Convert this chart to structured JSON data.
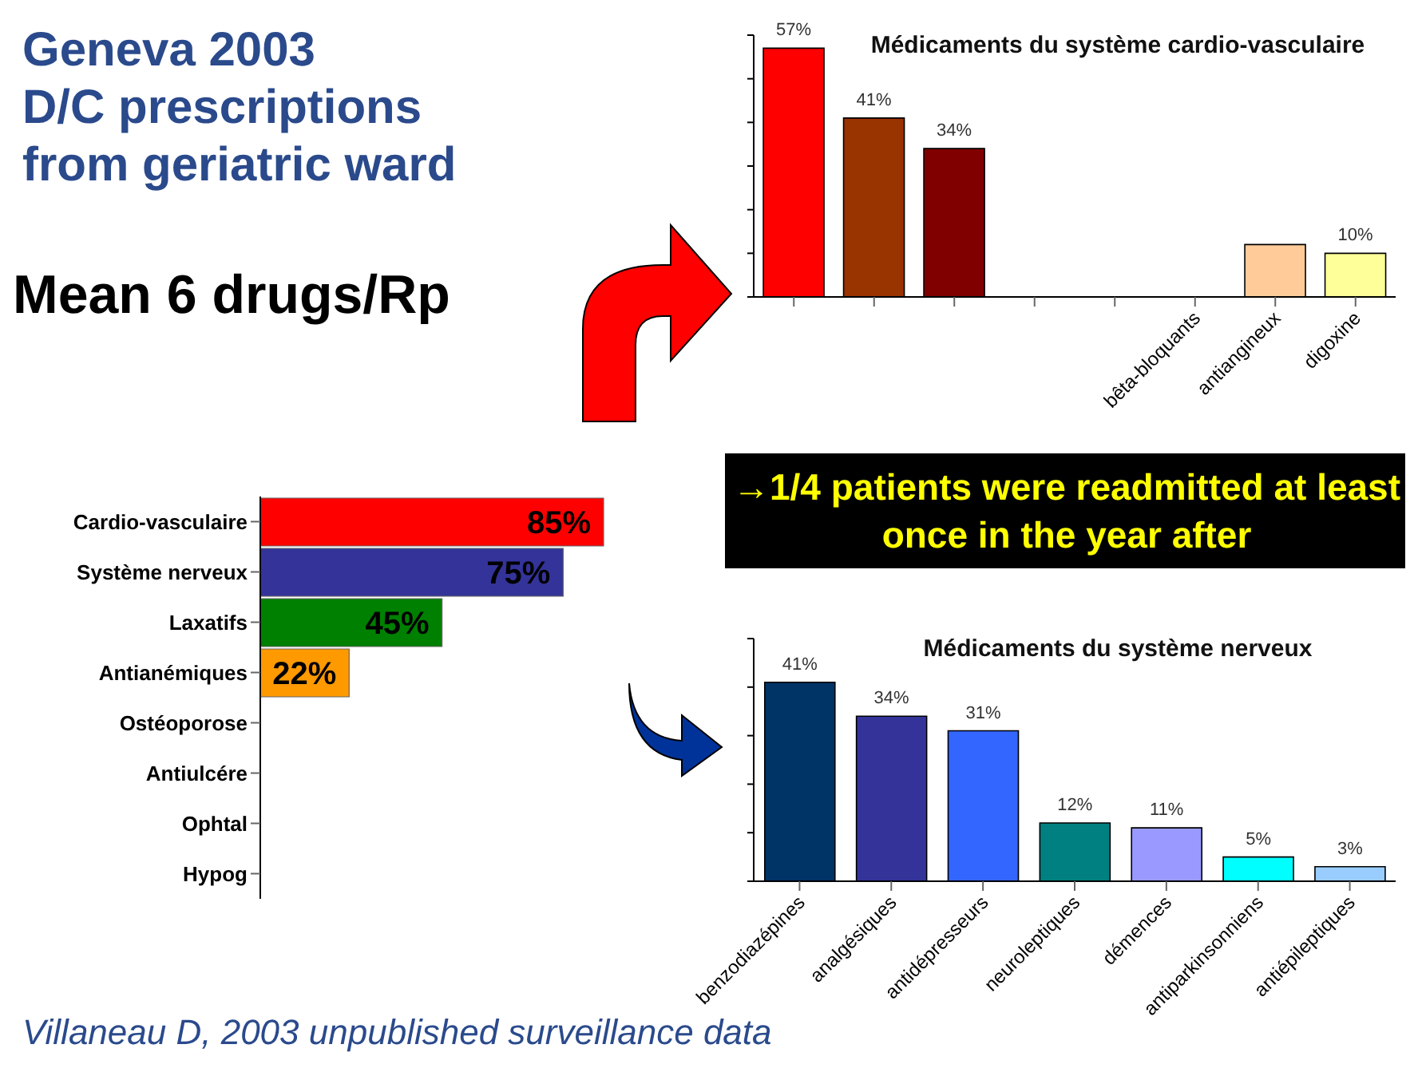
{
  "chart_data": [
    {
      "type": "bar",
      "orientation": "horizontal",
      "title": "Geneva 2003\nD/C prescriptions\nfrom geriatric ward",
      "subtitle": "Mean 6 drugs/Rp",
      "categories": [
        "Cardio-vasculaire",
        "Système nerveux",
        "Laxatifs",
        "Antianémiques",
        "Ostéoporose",
        "Antiulcére",
        "Ophtal",
        "Hypog"
      ],
      "values": [
        85,
        75,
        45,
        22,
        null,
        null,
        null,
        null
      ],
      "colors": [
        "#ff0000",
        "#333399",
        "#008000",
        "#ff9900",
        null,
        null,
        null,
        null
      ],
      "value_labels": [
        "85%",
        "75%",
        "45%",
        "22%",
        null,
        null,
        null,
        null
      ],
      "annotations": [
        "→1/4  patients were readmitted at least once in the year after",
        "Villaneau D, 2003 unpublished surveillance data"
      ]
    },
    {
      "type": "bar",
      "title": "Médicaments du système cardio-vasculaire",
      "categories": [
        null,
        null,
        null,
        null,
        null,
        "bêta-bloquants",
        "antiangineux",
        "digoxine"
      ],
      "values": [
        57,
        41,
        34,
        null,
        null,
        null,
        12,
        10
      ],
      "colors": [
        "#ff0000",
        "#993300",
        "#800000",
        null,
        null,
        null,
        "#ffcc99",
        "#ffff99"
      ],
      "value_labels": [
        "57%",
        "41%",
        "34%",
        null,
        null,
        null,
        null,
        "10%"
      ],
      "ylim": [
        0,
        60
      ],
      "yticks": [
        {
          "value": 0,
          "label": null
        },
        {
          "value": 10,
          "label": null
        },
        {
          "value": 20,
          "label": null
        },
        {
          "value": 30,
          "label": null
        },
        {
          "value": 40,
          "label": null
        },
        {
          "value": 50,
          "label": null
        },
        {
          "value": 60,
          "label": null
        }
      ],
      "tick_labels": "x"
    },
    {
      "type": "bar",
      "title": "Médicaments du système nerveux",
      "categories": [
        "benzodiazépines",
        "analgésiques",
        "antidépresseurs",
        "neuroleptiques",
        "démences",
        "antiparkinsonniens",
        "antiépileptiques"
      ],
      "values": [
        41,
        34,
        31,
        12,
        11,
        5,
        3
      ],
      "colors": [
        "#003366",
        "#333399",
        "#3366ff",
        "#008080",
        "#9999ff",
        "#00ffff",
        "#99ccff"
      ],
      "value_labels": [
        "41%",
        "34%",
        "31%",
        "12%",
        "11%",
        "5%",
        "3%"
      ],
      "ylim": [
        0,
        50
      ],
      "yticks": [
        {
          "value": 0,
          "label": null
        },
        {
          "value": 10,
          "label": null
        },
        {
          "value": 20,
          "label": null
        },
        {
          "value": 30,
          "label": null
        },
        {
          "value": 40,
          "label": null
        },
        {
          "value": 50,
          "label": null
        }
      ],
      "tick_labels": "x"
    }
  ]
}
